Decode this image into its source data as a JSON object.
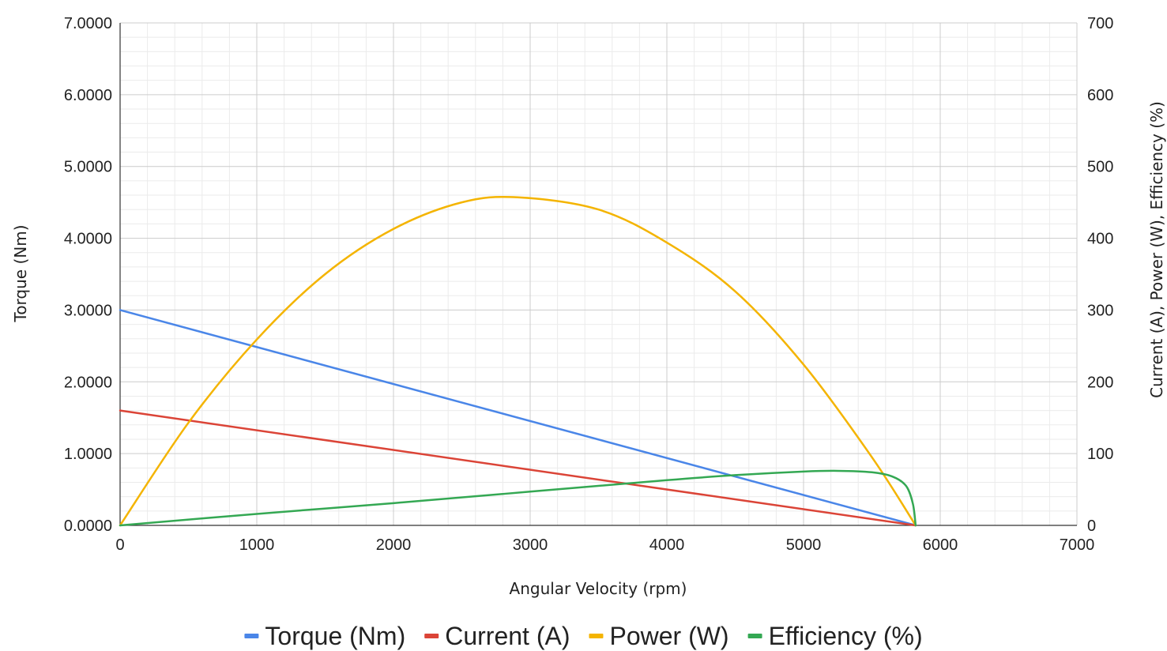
{
  "chart_data": {
    "type": "line",
    "title": "",
    "xlabel": "Angular Velocity (rpm)",
    "ylabel_left": "Torque (Nm)",
    "ylabel_right": "Current (A), Power (W), Efficiency (%)",
    "xlim": [
      0,
      7000
    ],
    "ylim_left": [
      0,
      7
    ],
    "ylim_right": [
      0,
      700
    ],
    "x_ticks": [
      "0",
      "1000",
      "2000",
      "3000",
      "4000",
      "5000",
      "6000",
      "7000"
    ],
    "y_left_ticks": [
      "0.0000",
      "1.0000",
      "2.0000",
      "3.0000",
      "4.0000",
      "5.0000",
      "6.0000",
      "7.0000"
    ],
    "y_right_ticks": [
      "0",
      "100",
      "200",
      "300",
      "400",
      "500",
      "600",
      "700"
    ],
    "grid": true,
    "legend_position": "bottom",
    "no_load_speed": 5820,
    "series": [
      {
        "name": "Torque (Nm)",
        "axis": "left",
        "color": "#4a86e8",
        "x": [
          0,
          5820
        ],
        "values": [
          3.0,
          0.0
        ]
      },
      {
        "name": "Current (A)",
        "axis": "right",
        "color": "#db4437",
        "x": [
          0,
          5820
        ],
        "values": [
          160,
          0
        ]
      },
      {
        "name": "Power (W)",
        "axis": "right",
        "color": "#f4b400",
        "x": [
          0,
          500,
          1000,
          1500,
          2000,
          2500,
          2910,
          3500,
          4000,
          4500,
          5000,
          5500,
          5820
        ],
        "values": [
          0,
          143,
          259,
          350,
          413,
          450,
          457,
          440,
          394,
          326,
          224,
          95,
          0
        ]
      },
      {
        "name": "Efficiency (%)",
        "axis": "right",
        "color": "#34a853",
        "x": [
          0,
          1000,
          2000,
          3000,
          4000,
          4500,
          5000,
          5250,
          5500,
          5650,
          5750,
          5800,
          5820
        ],
        "values": [
          0,
          16,
          31,
          47,
          63,
          70,
          75,
          76,
          74,
          68,
          55,
          30,
          0
        ]
      }
    ]
  }
}
